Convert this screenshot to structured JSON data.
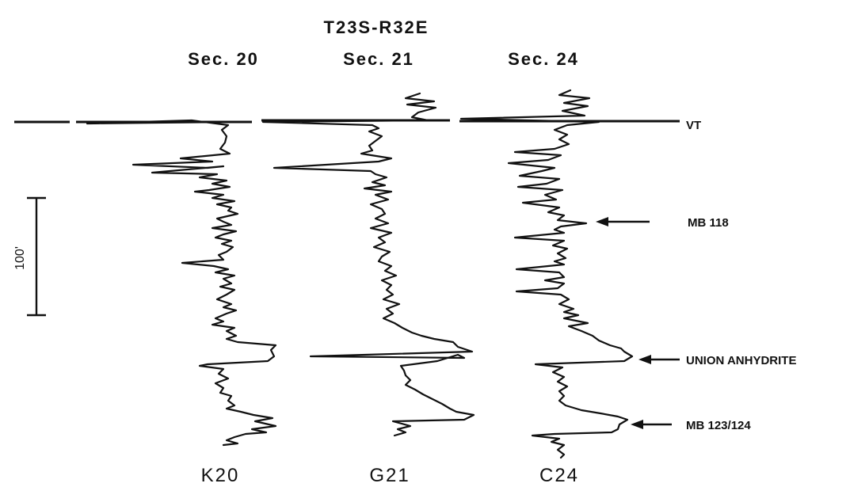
{
  "township": "T23S-R32E",
  "sections": [
    "Sec. 20",
    "Sec. 21",
    "Sec. 24"
  ],
  "wells": [
    "K20",
    "G21",
    "C24"
  ],
  "markers": {
    "vt": "VT",
    "mb118": "MB 118",
    "union": "UNION ANHYDRITE",
    "mb123": "MB 123/124"
  },
  "scale_label": "100'"
}
